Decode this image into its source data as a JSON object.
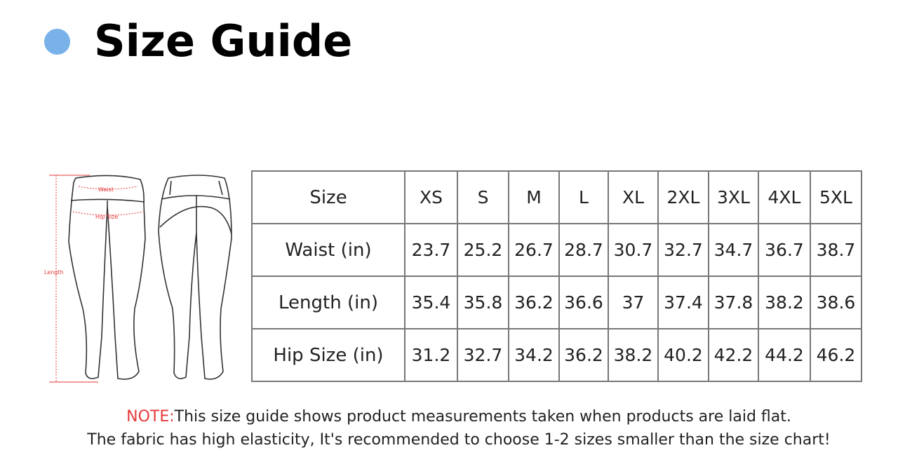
{
  "header": {
    "title": "Size Guide",
    "bullet_color": "#78b2e9"
  },
  "figure": {
    "labels": {
      "waist": "Waist",
      "hip": "Hip Size",
      "length": "Length"
    },
    "accent_color": "#e63a3a"
  },
  "size_table": {
    "header": [
      "Size",
      "XS",
      "S",
      "M",
      "L",
      "XL",
      "2XL",
      "3XL",
      "4XL",
      "5XL"
    ],
    "rows": [
      {
        "label": "Waist (in)",
        "values": [
          "23.7",
          "25.2",
          "26.7",
          "28.7",
          "30.7",
          "32.7",
          "34.7",
          "36.7",
          "38.7"
        ]
      },
      {
        "label": "Length (in)",
        "values": [
          "35.4",
          "35.8",
          "36.2",
          "36.6",
          "37",
          "37.4",
          "37.8",
          "38.2",
          "38.6"
        ]
      },
      {
        "label": "Hip Size (in)",
        "values": [
          "31.2",
          "32.7",
          "34.2",
          "36.2",
          "38.2",
          "40.2",
          "42.2",
          "44.2",
          "46.2"
        ]
      }
    ]
  },
  "note": {
    "prefix": "NOTE:",
    "line1": "This size guide shows product measurements taken when products are laid flat.",
    "line2": "The fabric has high elasticity, It's recommended to choose 1-2 sizes smaller than the size chart!"
  }
}
